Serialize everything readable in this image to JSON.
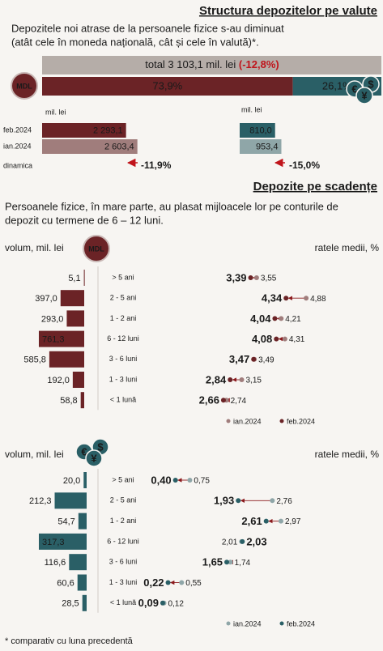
{
  "header": {
    "title": "Structura depozitelor pe valute",
    "subtitle": [
      "Depozitele noi atrase de la persoanele fizice s-au diminuat",
      "(atât cele în moneda națională, cât și cele în valută)*."
    ]
  },
  "icons": {
    "mdl": "MDL",
    "fx": [
      "€",
      "$",
      "¥"
    ]
  },
  "total": {
    "label": "total 3 103,1 mil. lei",
    "change": "(-12,8%)"
  },
  "shares": {
    "values": [
      73.9,
      26.1
    ],
    "value_labels": [
      "73,9%",
      "26,1%"
    ],
    "colors": [
      "#6b2326",
      "#2a5f66"
    ]
  },
  "currency": {
    "row_labels": [
      "feb.2024",
      "ian.2024",
      "dinamica"
    ],
    "panels": [
      {
        "unit": "mil. lei",
        "values": [
          2293.1,
          2603.4
        ],
        "value_labels": [
          "2 293,1",
          "2 603,4"
        ],
        "colors": [
          "#6b2326",
          "#a07d7c"
        ],
        "change": -11.9,
        "change_label": "-11,9%"
      },
      {
        "unit": "mil. lei",
        "values": [
          810.0,
          953.4
        ],
        "value_labels": [
          "810,0",
          "953,4"
        ],
        "colors": [
          "#2a5f66",
          "#8fa6a8"
        ],
        "change": -15.0,
        "change_label": "-15,0%"
      }
    ]
  },
  "maturity": {
    "title": "Depozite pe scadențe",
    "text": [
      "Persoanele fizice, în mare parte, au plasat mijloacele lor pe conturile de",
      "depozit cu termene de 6 – 12 luni."
    ],
    "categories": [
      "> 5 ani",
      "2 - 5 ani",
      "1 - 2 ani",
      "6 - 12 luni",
      "3 - 6 luni",
      "1 - 3 luni",
      "< 1 lună"
    ],
    "legend": [
      "ian.2024",
      "feb.2024"
    ],
    "panels": [
      {
        "volume_label": "volum, mil. lei",
        "rate_label": "ratele medii, %",
        "color": "#6b2326",
        "jan_color": "#a07d7c",
        "volumes": [
          5.1,
          397.0,
          293.0,
          761.3,
          585.8,
          192.0,
          58.8
        ],
        "volume_labels": [
          "5,1",
          "397,0",
          "293,0",
          "761,3",
          "585,8",
          "192,0",
          "58,8"
        ],
        "feb": [
          3.39,
          4.34,
          4.04,
          4.08,
          3.47,
          2.84,
          2.66
        ],
        "feb_labels": [
          "3,39",
          "4,34",
          "4,04",
          "4,08",
          "3,47",
          "2,84",
          "2,66"
        ],
        "jan": [
          3.55,
          4.88,
          4.21,
          4.31,
          3.49,
          3.15,
          2.74
        ],
        "jan_labels": [
          "3,55",
          "4,88",
          "4,21",
          "4,31",
          "3,49",
          "3,15",
          "2,74"
        ]
      },
      {
        "volume_label": "volum, mil. lei",
        "rate_label": "ratele medii, %",
        "color": "#2a5f66",
        "jan_color": "#8fa6a8",
        "volumes": [
          20.0,
          212.3,
          54.7,
          317.3,
          116.6,
          60.6,
          28.5
        ],
        "volume_labels": [
          "20,0",
          "212,3",
          "54,7",
          "317,3",
          "116,6",
          "60,6",
          "28,5"
        ],
        "feb": [
          0.4,
          1.93,
          2.61,
          2.03,
          1.65,
          0.22,
          0.09
        ],
        "feb_labels": [
          "0,40",
          "1,93",
          "2,61",
          "2,03",
          "1,65",
          "0,22",
          "0,09"
        ],
        "jan": [
          0.75,
          2.76,
          2.97,
          2.01,
          1.74,
          0.55,
          0.12
        ],
        "jan_labels": [
          "0,75",
          "2,76",
          "2,97",
          "2,01",
          "1,74",
          "0,55",
          "0,12"
        ]
      }
    ]
  },
  "footnote": "* comparativ cu luna precedentă"
}
